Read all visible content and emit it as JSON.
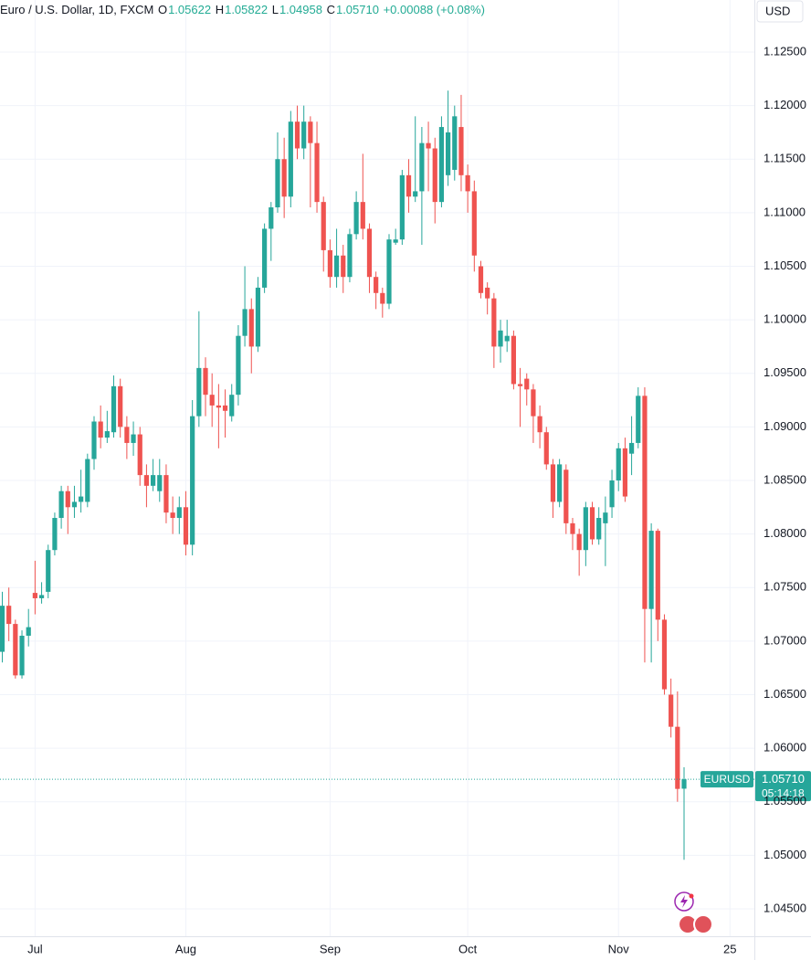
{
  "header": {
    "title": "Euro / U.S. Dollar, 1D, FXCM",
    "o": "O",
    "open": "1.05622",
    "h": "H",
    "high": "1.05822",
    "l": "L",
    "low": "1.04958",
    "c": "C",
    "close": "1.05710",
    "change": "+0.00088 (+0.08%)"
  },
  "chart_data": {
    "type": "candlestick",
    "currency": "USD",
    "up_color": "#26a69a",
    "down_color": "#ef5350",
    "grid": true,
    "price_tag": {
      "symbol": "EURUSD",
      "price": "1.05710",
      "countdown": "05:14:18"
    },
    "categories": [
      null,
      null,
      null,
      null,
      null,
      "Jul",
      null,
      null,
      null,
      null,
      null,
      null,
      null,
      null,
      null,
      null,
      null,
      null,
      null,
      null,
      null,
      null,
      null,
      null,
      null,
      null,
      null,
      null,
      "Aug",
      null,
      null,
      null,
      null,
      null,
      null,
      null,
      null,
      null,
      null,
      null,
      null,
      null,
      null,
      null,
      null,
      null,
      null,
      null,
      null,
      null,
      "Sep",
      null,
      null,
      null,
      null,
      null,
      null,
      null,
      null,
      null,
      null,
      null,
      null,
      null,
      null,
      null,
      null,
      null,
      null,
      null,
      null,
      "Oct",
      null,
      null,
      null,
      null,
      null,
      null,
      null,
      null,
      null,
      null,
      null,
      null,
      null,
      null,
      null,
      null,
      null,
      null,
      null,
      null,
      null,
      null,
      "Nov",
      null,
      null,
      null,
      null,
      null,
      null,
      null,
      null,
      null,
      null,
      null,
      null,
      null,
      null,
      null,
      null,
      "25",
      null,
      null,
      null
    ],
    "open": [
      1.069,
      1.0733,
      1.0716,
      1.0668,
      1.0705,
      1.0745,
      1.074,
      1.0746,
      1.0785,
      1.0815,
      1.084,
      1.0825,
      1.083,
      1.083,
      1.087,
      1.0905,
      1.089,
      1.0895,
      1.0938,
      1.09,
      1.0885,
      1.0893,
      1.0855,
      1.0845,
      1.084,
      1.0855,
      1.082,
      1.0815,
      1.0825,
      1.079,
      1.091,
      1.0955,
      1.093,
      1.092,
      1.092,
      1.091,
      1.093,
      1.0985,
      1.101,
      1.0975,
      1.103,
      1.1085,
      1.1105,
      1.115,
      1.1115,
      1.1185,
      1.116,
      1.1185,
      1.1165,
      1.111,
      1.1065,
      1.104,
      1.106,
      1.104,
      1.108,
      1.111,
      1.1085,
      1.104,
      1.1025,
      1.1015,
      1.1072,
      1.1075,
      1.1135,
      1.1115,
      1.112,
      1.1165,
      1.116,
      1.111,
      1.1135,
      1.114,
      1.118,
      1.1135,
      1.112,
      1.105,
      1.103,
      1.102,
      1.0975,
      1.098,
      1.0985,
      1.094,
      1.0945,
      1.0935,
      1.091,
      1.0895,
      1.0865,
      1.083,
      1.086,
      1.081,
      1.08,
      1.0785,
      1.0825,
      1.0795,
      1.081,
      1.0825,
      1.085,
      1.088,
      1.0875,
      1.0885,
      1.0929,
      1.073,
      1.0803,
      1.072,
      1.065,
      1.062,
      1.05622,
      null,
      null,
      null,
      null,
      null,
      null,
      null,
      null,
      null,
      null
    ],
    "high": [
      1.0746,
      1.075,
      1.072,
      1.071,
      1.073,
      1.0775,
      1.0755,
      1.079,
      1.082,
      1.0845,
      1.0845,
      1.0845,
      1.086,
      1.0875,
      1.091,
      1.092,
      1.0915,
      1.0948,
      1.0945,
      1.091,
      1.0905,
      1.09,
      1.0865,
      1.087,
      1.087,
      1.0865,
      1.0835,
      1.0835,
      1.084,
      1.0925,
      1.1008,
      1.0965,
      1.095,
      1.094,
      1.0935,
      1.094,
      1.0995,
      1.105,
      1.102,
      1.104,
      1.109,
      1.111,
      1.1175,
      1.117,
      1.1195,
      1.12,
      1.12,
      1.119,
      1.1185,
      1.1115,
      1.1075,
      1.1085,
      1.107,
      1.1085,
      1.112,
      1.1155,
      1.109,
      1.1045,
      1.103,
      1.108,
      1.1085,
      1.114,
      1.115,
      1.119,
      1.118,
      1.1185,
      1.117,
      1.119,
      1.1214,
      1.12,
      1.121,
      1.1145,
      1.113,
      1.1055,
      1.1035,
      1.1025,
      1.1,
      1.1,
      1.099,
      1.0955,
      1.095,
      1.094,
      1.092,
      1.09,
      1.087,
      1.087,
      1.0865,
      1.0815,
      1.0805,
      1.083,
      1.083,
      1.0825,
      1.0835,
      1.086,
      1.0885,
      1.089,
      1.091,
      1.0937,
      1.0937,
      1.081,
      1.0805,
      1.0725,
      1.0665,
      1.0653,
      1.05822,
      null,
      null,
      null,
      null,
      null,
      null,
      null,
      null,
      null,
      null
    ],
    "low": [
      1.068,
      1.07,
      1.0665,
      1.0665,
      1.0695,
      1.0725,
      1.0735,
      1.074,
      1.078,
      1.0805,
      1.08,
      1.0815,
      1.082,
      1.0825,
      1.086,
      1.088,
      1.0885,
      1.089,
      1.089,
      1.087,
      1.0873,
      1.0845,
      1.0825,
      1.084,
      1.083,
      1.081,
      1.08,
      1.08,
      1.078,
      1.078,
      1.09,
      1.091,
      1.09,
      1.088,
      1.089,
      1.0905,
      1.092,
      1.0975,
      1.095,
      1.097,
      1.1025,
      1.1055,
      1.11,
      1.1095,
      1.1105,
      1.115,
      1.115,
      1.1105,
      1.11,
      1.1045,
      1.103,
      1.103,
      1.1025,
      1.1035,
      1.1075,
      1.1075,
      1.1025,
      1.101,
      1.1002,
      1.101,
      1.107,
      1.107,
      1.11,
      1.111,
      1.107,
      1.112,
      1.109,
      1.1105,
      1.1125,
      1.113,
      1.112,
      1.11,
      1.1045,
      1.102,
      1.1005,
      1.0955,
      1.096,
      1.097,
      1.0935,
      1.09,
      1.092,
      1.0885,
      1.088,
      1.086,
      1.0815,
      1.0825,
      1.08,
      1.0785,
      1.0761,
      1.077,
      1.079,
      1.079,
      1.077,
      1.0815,
      1.084,
      1.083,
      1.0855,
      1.088,
      1.068,
      1.068,
      1.07,
      1.065,
      1.061,
      1.055,
      1.04958,
      null,
      null,
      null,
      null,
      null,
      null,
      null,
      null,
      null,
      null
    ],
    "close": [
      1.0733,
      1.0716,
      1.0668,
      1.0705,
      1.0713,
      1.074,
      1.0743,
      1.0785,
      1.0815,
      1.084,
      1.0825,
      1.083,
      1.0835,
      1.087,
      1.0905,
      1.089,
      1.0896,
      1.0938,
      1.09,
      1.0885,
      1.0893,
      1.0855,
      1.0845,
      1.0855,
      1.0855,
      1.082,
      1.0815,
      1.0825,
      1.079,
      1.091,
      1.0955,
      1.093,
      1.092,
      1.0918,
      1.0915,
      1.093,
      1.0985,
      1.101,
      1.0975,
      1.103,
      1.1085,
      1.1105,
      1.115,
      1.1115,
      1.1185,
      1.116,
      1.1185,
      1.1165,
      1.111,
      1.1065,
      1.104,
      1.106,
      1.104,
      1.108,
      1.111,
      1.1085,
      1.104,
      1.1025,
      1.1015,
      1.1075,
      1.1075,
      1.1135,
      1.1115,
      1.112,
      1.1165,
      1.116,
      1.111,
      1.118,
      1.1175,
      1.119,
      1.1135,
      1.112,
      1.106,
      1.1025,
      1.102,
      1.0975,
      1.099,
      1.0985,
      1.094,
      1.0938,
      1.0935,
      1.091,
      1.0895,
      1.0865,
      1.083,
      1.0865,
      1.081,
      1.08,
      1.0785,
      1.0825,
      1.0795,
      1.0815,
      1.082,
      1.085,
      1.088,
      1.0835,
      1.0885,
      1.0929,
      1.073,
      1.0803,
      1.072,
      1.0655,
      1.062,
      1.0562,
      1.0571,
      null,
      null,
      null,
      null,
      null,
      null,
      null,
      null,
      null,
      null
    ],
    "ylim": [
      1.04244,
      1.12986
    ],
    "yticks": [
      {
        "value": 1.045,
        "label": "1.04500"
      },
      {
        "value": 1.05,
        "label": "1.05000"
      },
      {
        "value": 1.055,
        "label": "1.05500"
      },
      {
        "value": 1.06,
        "label": "1.06000"
      },
      {
        "value": 1.065,
        "label": "1.06500"
      },
      {
        "value": 1.07,
        "label": "1.07000"
      },
      {
        "value": 1.075,
        "label": "1.07500"
      },
      {
        "value": 1.08,
        "label": "1.08000"
      },
      {
        "value": 1.085,
        "label": "1.08500"
      },
      {
        "value": 1.09,
        "label": "1.09000"
      },
      {
        "value": 1.095,
        "label": "1.09500"
      },
      {
        "value": 1.1,
        "label": "1.10000"
      },
      {
        "value": 1.105,
        "label": "1.10500"
      },
      {
        "value": 1.11,
        "label": "1.11000"
      },
      {
        "value": 1.115,
        "label": "1.11500"
      },
      {
        "value": 1.12,
        "label": "1.12000"
      },
      {
        "value": 1.125,
        "label": "1.12500"
      }
    ]
  }
}
